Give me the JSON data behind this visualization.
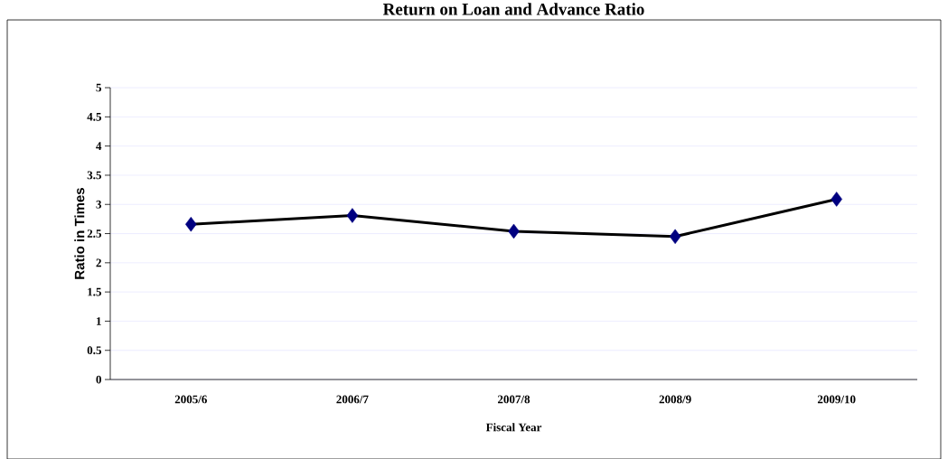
{
  "chart_data": {
    "type": "line",
    "title": "Return on Loan and Advance Ratio",
    "xlabel": "Fiscal Year",
    "ylabel": "Ratio in Times",
    "categories": [
      "2005/6",
      "2006/7",
      "2007/8",
      "2008/9",
      "2009/10"
    ],
    "series": [
      {
        "color": "#000000",
        "colors": [
          "#000080",
          "#000080",
          "#000080",
          "#000080",
          "#000080"
        ],
        "values": [
          2.66,
          2.81,
          2.54,
          2.45,
          3.09
        ]
      }
    ],
    "ylim": [
      0,
      5
    ],
    "yticks": [
      0,
      0.5,
      1,
      1.5,
      2,
      2.5,
      3,
      3.5,
      4,
      4.5,
      5
    ],
    "grid": "y",
    "legend": false,
    "marker": "diamond",
    "line_style": "solid"
  }
}
